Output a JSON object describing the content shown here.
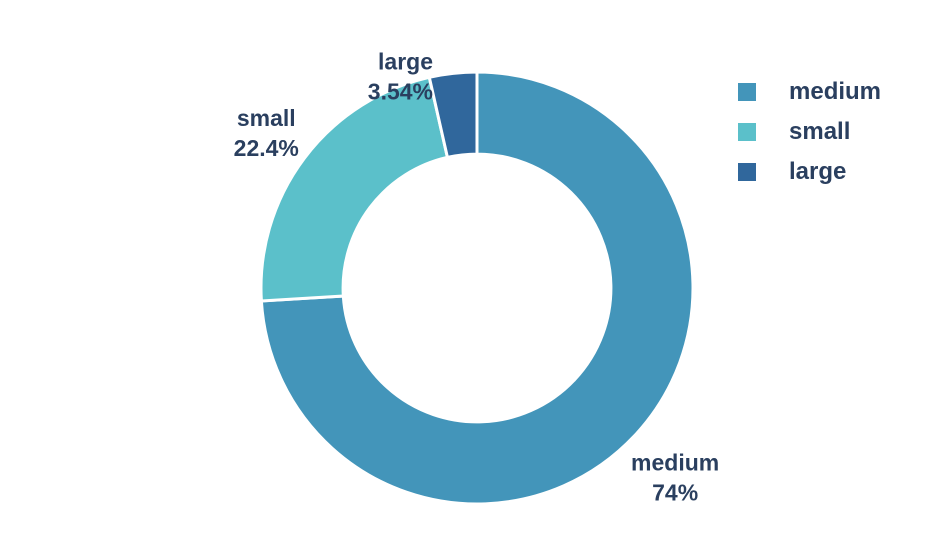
{
  "chart_data": {
    "type": "pie",
    "hole": 0.62,
    "slices": [
      {
        "label": "medium",
        "value": 74,
        "text": "74%",
        "color": "#4395ba"
      },
      {
        "label": "small",
        "value": 22.4,
        "text": "22.4%",
        "color": "#5bc0ca"
      },
      {
        "label": "large",
        "value": 3.54,
        "text": "3.54%",
        "color": "#30679c"
      }
    ],
    "legend": {
      "position": "top-right",
      "entries": [
        "medium",
        "small",
        "large"
      ]
    },
    "label_color": "#2a3f5f"
  }
}
